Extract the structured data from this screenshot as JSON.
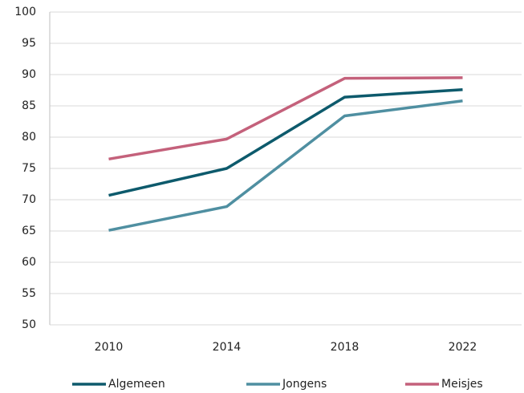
{
  "chart_data": {
    "type": "line",
    "categories": [
      "2010",
      "2014",
      "2018",
      "2022"
    ],
    "series": [
      {
        "name": "Algemeen",
        "color": "#0d5a6c",
        "values": [
          70.7,
          75.0,
          86.4,
          87.6
        ]
      },
      {
        "name": "Jongens",
        "color": "#4f8fa1",
        "values": [
          65.1,
          68.9,
          83.4,
          85.8
        ]
      },
      {
        "name": "Meisjes",
        "color": "#c4617b",
        "values": [
          76.5,
          79.7,
          89.4,
          89.5
        ]
      }
    ],
    "ylim": [
      50,
      100
    ],
    "yticks": [
      50,
      55,
      60,
      65,
      70,
      75,
      80,
      85,
      90,
      95,
      100
    ],
    "grid": true,
    "legend": "bottom"
  }
}
